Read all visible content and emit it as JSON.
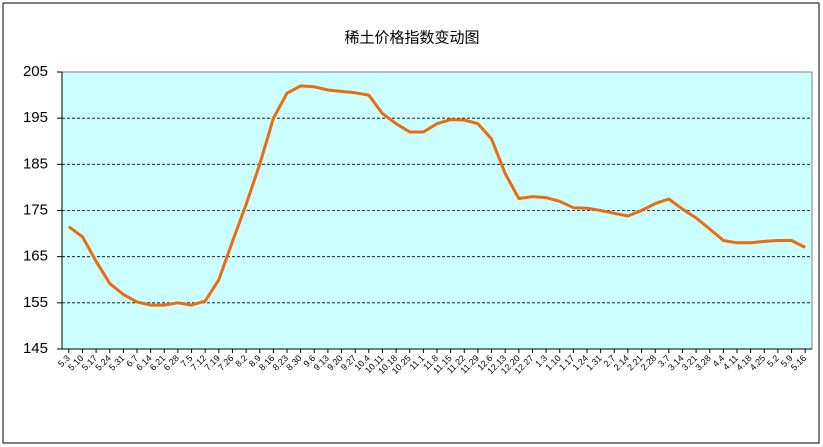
{
  "chart_data": {
    "type": "line",
    "title": "稀土价格指数变动图",
    "categories": [
      "5.3",
      "5.10",
      "5.17",
      "5.24",
      "5.31",
      "6.7",
      "6.14",
      "6.21",
      "6.28",
      "7.5",
      "7.12",
      "7.19",
      "7.26",
      "8.2",
      "8.9",
      "8.16",
      "8.23",
      "8.30",
      "9.6",
      "9.13",
      "9.20",
      "9.27",
      "10.4",
      "10.11",
      "10.18",
      "10.25",
      "11.1",
      "11.8",
      "11.15",
      "11.22",
      "11.29",
      "12.6",
      "12.13",
      "12.20",
      "12.27",
      "1.3",
      "1.10",
      "1.17",
      "1.24",
      "1.31",
      "2.7",
      "2.14",
      "2.21",
      "2.28",
      "3.7",
      "3.14",
      "3.21",
      "3.28",
      "4.4",
      "4.11",
      "4.18",
      "4.25",
      "5.2",
      "5.9",
      "5.16"
    ],
    "series": [
      {
        "name": "稀土价格指数",
        "color": "#ea6b12",
        "values": [
          171.5,
          169.3,
          164,
          159.2,
          156.8,
          155.2,
          154.5,
          154.5,
          155,
          154.5,
          155.4,
          160,
          168.3,
          176.3,
          185,
          195,
          200.4,
          202,
          201.8,
          201.1,
          200.8,
          200.5,
          200,
          196,
          193.8,
          192,
          192,
          193.8,
          194.7,
          194.6,
          193.8,
          190.5,
          183,
          177.6,
          178,
          177.8,
          177,
          175.6,
          175.5,
          175,
          174.4,
          173.8,
          175,
          176.5,
          177.5,
          175.3,
          173.4,
          171,
          168.5,
          168,
          168,
          168.3,
          168.5,
          168.5,
          167
        ]
      }
    ],
    "ylim": [
      145,
      205
    ],
    "yticks": [
      145,
      155,
      165,
      175,
      185,
      195,
      205
    ],
    "grid": true,
    "background": "#ccffff"
  }
}
